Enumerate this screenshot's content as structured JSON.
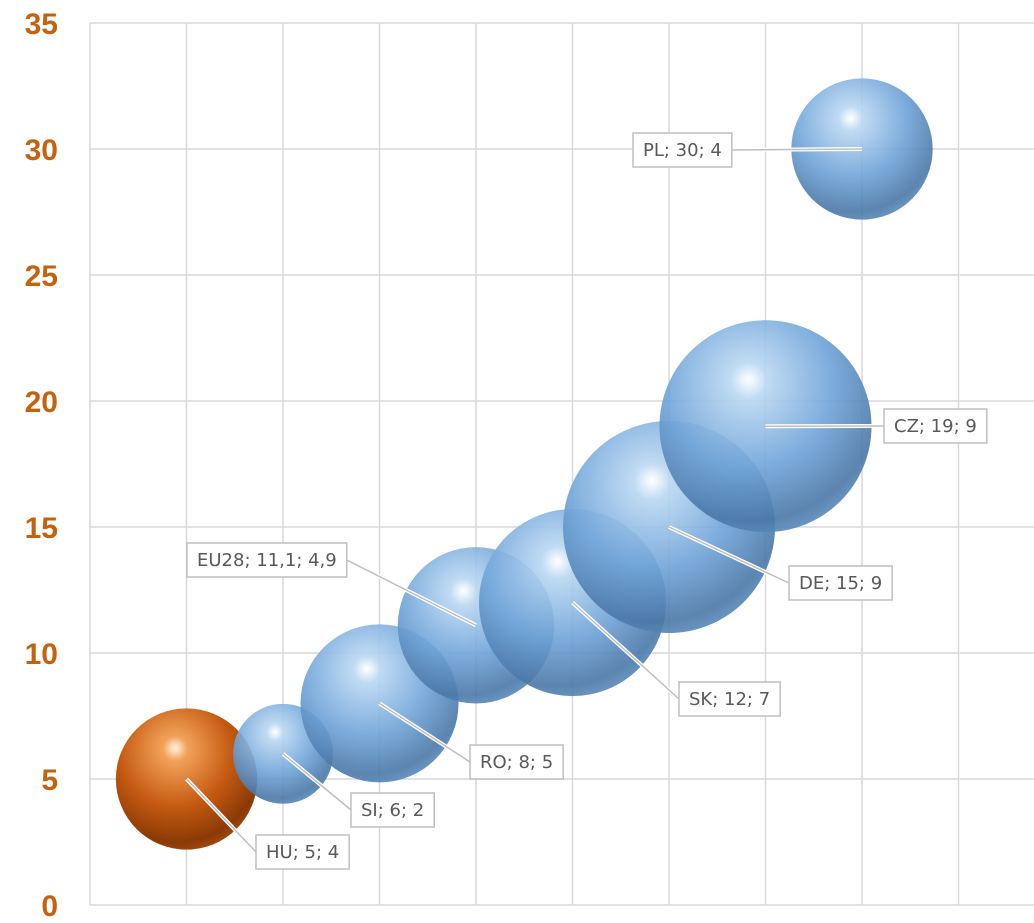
{
  "chart_data": {
    "type": "bubble",
    "title": "",
    "xlabel": "",
    "ylabel": "",
    "xlim": [
      0,
      10
    ],
    "ylim": [
      0,
      35
    ],
    "y_ticks": [
      "0",
      "5",
      "10",
      "15",
      "20",
      "25",
      "30",
      "35"
    ],
    "x_tick_labels_shown": false,
    "grid": true,
    "legend": "none",
    "colors": {
      "tick_label": "#c5620f",
      "grid": "#d9d9d9",
      "label_border": "#bfbfbf",
      "label_text": "#595959",
      "highlight_bubble": "#c55a11",
      "default_bubble": "#6fa3d8"
    },
    "points": [
      {
        "label": "HU; 5; 4",
        "code": "HU",
        "x": 1,
        "y": 5,
        "size": 4,
        "highlight": true
      },
      {
        "label": "SI; 6; 2",
        "code": "SI",
        "x": 2,
        "y": 6,
        "size": 2,
        "highlight": false
      },
      {
        "label": "RO; 8; 5",
        "code": "RO",
        "x": 3,
        "y": 8,
        "size": 5,
        "highlight": false
      },
      {
        "label": "EU28; 11,1; 4,9",
        "code": "EU28",
        "x": 4,
        "y": 11.1,
        "size": 4.9,
        "highlight": false
      },
      {
        "label": "SK; 12; 7",
        "code": "SK",
        "x": 5,
        "y": 12,
        "size": 7,
        "highlight": false
      },
      {
        "label": "DE; 15; 9",
        "code": "DE",
        "x": 6,
        "y": 15,
        "size": 9,
        "highlight": false
      },
      {
        "label": "CZ; 19; 9",
        "code": "CZ",
        "x": 7,
        "y": 19,
        "size": 9,
        "highlight": false
      },
      {
        "label": "PL; 30; 4",
        "code": "PL",
        "x": 8,
        "y": 30,
        "size": 4,
        "highlight": false
      }
    ]
  }
}
